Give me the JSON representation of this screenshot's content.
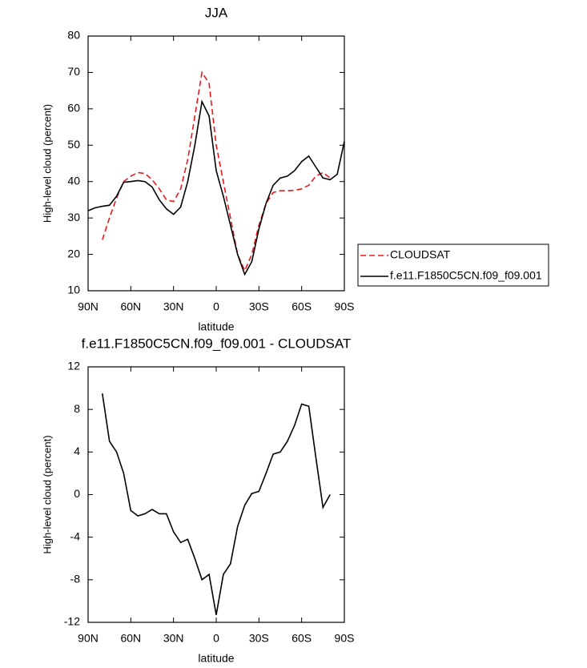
{
  "chart_data": [
    {
      "type": "line",
      "title": "JJA",
      "xlabel": "latitude",
      "ylabel": "High-level cloud (percent)",
      "x": [
        90,
        85,
        80,
        75,
        70,
        65,
        60,
        55,
        50,
        45,
        40,
        35,
        30,
        25,
        20,
        15,
        10,
        5,
        0,
        -5,
        -10,
        -15,
        -20,
        -25,
        -30,
        -35,
        -40,
        -45,
        -50,
        -55,
        -60,
        -65,
        -70,
        -75,
        -80,
        -85,
        -90
      ],
      "series": [
        {
          "name": "CLOUDSAT",
          "color": "#e8191c",
          "dash": true,
          "values": [
            null,
            null,
            24,
            30,
            35.5,
            40,
            41.5,
            42.5,
            42.2,
            40.5,
            38,
            35,
            34.5,
            38,
            46,
            58,
            70,
            67,
            50,
            40,
            30,
            20,
            15.5,
            20,
            28,
            34,
            37,
            37.5,
            37.5,
            37.6,
            38,
            39,
            41.5,
            42.5,
            41,
            null,
            null
          ]
        },
        {
          "name": "f.e11.F1850C5CN.f09_f09.001",
          "color": "#000000",
          "dash": false,
          "values": [
            32,
            32.8,
            33.2,
            33.5,
            36,
            39.8,
            40,
            40.3,
            40,
            38.5,
            35,
            32.5,
            31,
            33,
            40,
            50,
            62,
            58,
            43,
            36,
            28,
            20,
            14.5,
            18,
            27,
            34,
            39,
            41,
            41.5,
            43,
            45.5,
            47,
            44,
            41,
            40.5,
            42,
            51
          ]
        }
      ],
      "xlim": [
        90,
        -90
      ],
      "ylim": [
        10,
        80
      ],
      "xticks": [
        {
          "value": 90,
          "label": "90N"
        },
        {
          "value": 60,
          "label": "60N"
        },
        {
          "value": 30,
          "label": "30N"
        },
        0,
        {
          "value": -30,
          "label": "30S"
        },
        {
          "value": -60,
          "label": "60S"
        },
        {
          "value": -90,
          "label": "90S"
        }
      ],
      "yticks": [
        10,
        20,
        30,
        40,
        50,
        60,
        70,
        80
      ],
      "legend": "right"
    },
    {
      "type": "line",
      "title": "f.e11.F1850C5CN.f09_f09.001 - CLOUDSAT",
      "xlabel": "latitude",
      "ylabel": "High-level cloud (percent)",
      "x": [
        90,
        85,
        80,
        75,
        70,
        65,
        60,
        55,
        50,
        45,
        40,
        35,
        30,
        25,
        20,
        15,
        10,
        5,
        0,
        -5,
        -10,
        -15,
        -20,
        -25,
        -30,
        -35,
        -40,
        -45,
        -50,
        -55,
        -60,
        -65,
        -70,
        -75,
        -80,
        -85,
        -90
      ],
      "color": "#000000",
      "values": [
        null,
        null,
        9.5,
        5,
        4,
        2,
        -1.5,
        -2,
        -1.8,
        -1.4,
        -1.8,
        -1.8,
        -3.5,
        -4.5,
        -4.2,
        -6,
        -8,
        -7.5,
        -11.3,
        -7.5,
        -6.5,
        -3,
        -1,
        0.1,
        0.3,
        2,
        3.8,
        4,
        5,
        6.5,
        8.5,
        8.3,
        3.5,
        -1.2,
        0,
        null,
        null
      ],
      "xlim": [
        90,
        -90
      ],
      "ylim": [
        -12,
        12
      ],
      "xticks": [
        {
          "value": 90,
          "label": "90N"
        },
        {
          "value": 60,
          "label": "60N"
        },
        {
          "value": 30,
          "label": "30N"
        },
        0,
        {
          "value": -30,
          "label": "30S"
        },
        {
          "value": -60,
          "label": "60S"
        },
        {
          "value": -90,
          "label": "90S"
        }
      ],
      "yticks": [
        -12,
        -8,
        -4,
        0,
        4,
        8,
        12
      ]
    }
  ]
}
